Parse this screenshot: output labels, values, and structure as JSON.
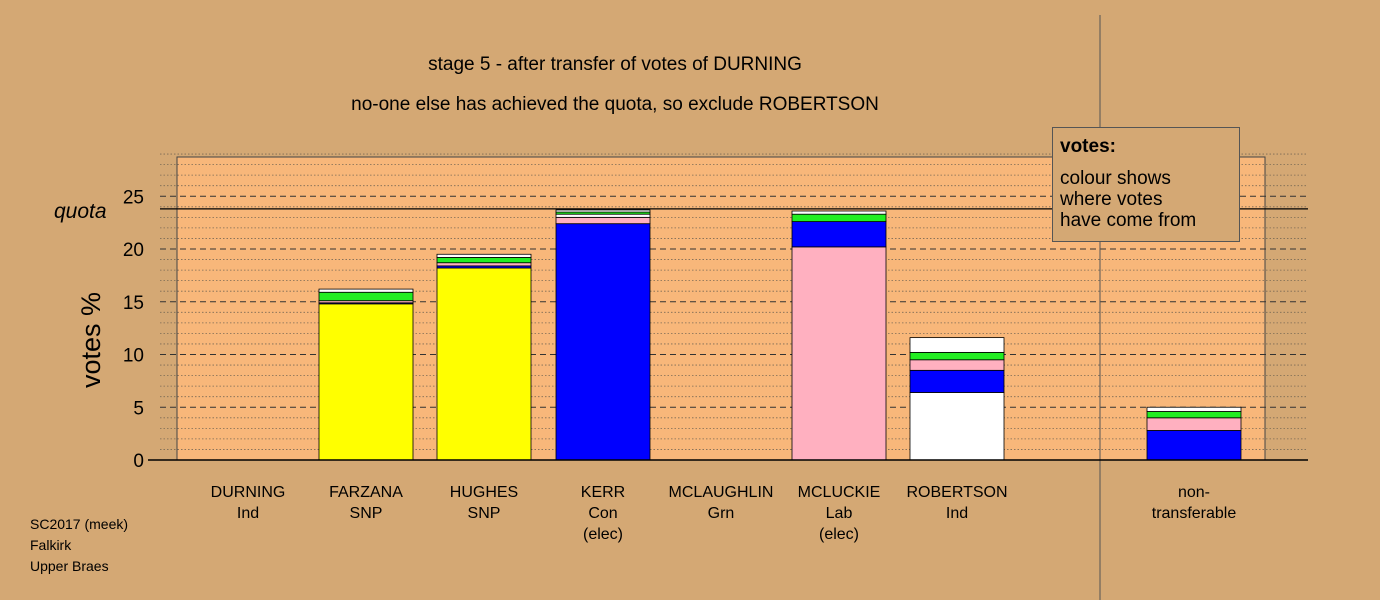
{
  "header": {
    "title1": "stage 5 - after transfer of votes of DURNING",
    "title2": "no-one else has achieved the quota, so exclude ROBERTSON"
  },
  "legend": {
    "title": "votes:",
    "line1": "colour shows",
    "line2": "where votes",
    "line3": "have come from"
  },
  "footer": {
    "line1": "SC2017 (meek)",
    "line2": "Falkirk",
    "line3": "Upper Braes"
  },
  "chart_data": {
    "type": "bar",
    "stacked": true,
    "ylabel": "votes %",
    "ylim": [
      0,
      29
    ],
    "yticks": [
      0,
      5,
      10,
      15,
      20,
      25
    ],
    "quota": 23.8,
    "quota_label": "quota",
    "grid": true,
    "legend_position": "top-right",
    "categories": [
      {
        "name": "DURNING",
        "party": "Ind",
        "note": ""
      },
      {
        "name": "FARZANA",
        "party": "SNP",
        "note": ""
      },
      {
        "name": "HUGHES",
        "party": "SNP",
        "note": ""
      },
      {
        "name": "KERR",
        "party": "Con",
        "note": "(elec)"
      },
      {
        "name": "MCLAUGHLIN",
        "party": "Grn",
        "note": ""
      },
      {
        "name": "MCLUCKIE",
        "party": "Lab",
        "note": "(elec)"
      },
      {
        "name": "ROBERTSON",
        "party": "Ind",
        "note": ""
      }
    ],
    "nontransferable_label": [
      "non-",
      "transferable"
    ],
    "colors": {
      "Ind": "#ffffff",
      "SNP": "#ffff00",
      "Con": "#0000ff",
      "Lab": "#ffb0c0",
      "Grn": "#22ee22"
    },
    "bars": [
      {
        "candidate": "DURNING",
        "segments": []
      },
      {
        "candidate": "FARZANA",
        "segments": [
          {
            "source": "SNP",
            "value": 14.8
          },
          {
            "source": "Con",
            "value": 0.1
          },
          {
            "source": "Lab",
            "value": 0.2
          },
          {
            "source": "Grn",
            "value": 0.8
          },
          {
            "source": "Ind",
            "value": 0.3
          }
        ]
      },
      {
        "candidate": "HUGHES",
        "segments": [
          {
            "source": "SNP",
            "value": 18.2
          },
          {
            "source": "Con",
            "value": 0.2
          },
          {
            "source": "Lab",
            "value": 0.3
          },
          {
            "source": "Grn",
            "value": 0.5
          },
          {
            "source": "Ind",
            "value": 0.3
          }
        ]
      },
      {
        "candidate": "KERR",
        "segments": [
          {
            "source": "Con",
            "value": 22.4
          },
          {
            "source": "Lab",
            "value": 0.6
          },
          {
            "source": "Ind",
            "value": 0.3
          },
          {
            "source": "Grn",
            "value": 0.2
          },
          {
            "source": "Ind",
            "value": 0.2
          }
        ]
      },
      {
        "candidate": "MCLAUGHLIN",
        "segments": []
      },
      {
        "candidate": "MCLUCKIE",
        "segments": [
          {
            "source": "Lab",
            "value": 20.2
          },
          {
            "source": "Con",
            "value": 2.4
          },
          {
            "source": "Grn",
            "value": 0.7
          },
          {
            "source": "Ind",
            "value": 0.3
          }
        ]
      },
      {
        "candidate": "ROBERTSON",
        "segments": [
          {
            "source": "Ind",
            "value": 6.4
          },
          {
            "source": "Con",
            "value": 2.1
          },
          {
            "source": "Lab",
            "value": 1.0
          },
          {
            "source": "Grn",
            "value": 0.7
          },
          {
            "source": "Ind",
            "value": 1.4
          }
        ]
      }
    ],
    "nontransferable": {
      "segments": [
        {
          "source": "Con",
          "value": 2.8
        },
        {
          "source": "Lab",
          "value": 1.2
        },
        {
          "source": "Grn",
          "value": 0.6
        },
        {
          "source": "Ind",
          "value": 0.4
        }
      ]
    }
  }
}
